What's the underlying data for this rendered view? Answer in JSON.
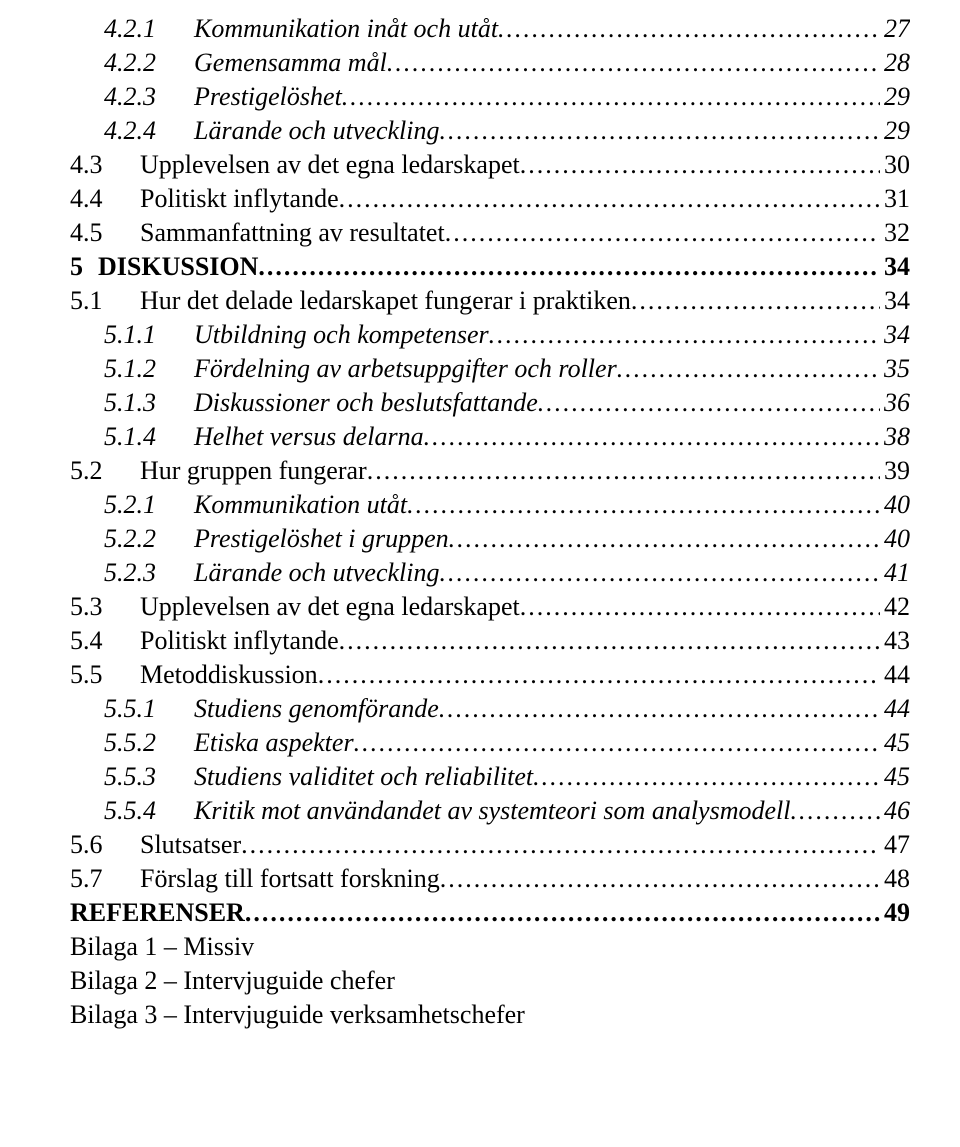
{
  "toc": [
    {
      "level": 3,
      "num": "4.2.1",
      "title": "Kommunikation inåt och utåt",
      "page": "27"
    },
    {
      "level": 3,
      "num": "4.2.2",
      "title": "Gemensamma mål",
      "page": "28"
    },
    {
      "level": 3,
      "num": "4.2.3",
      "title": "Prestigelöshet",
      "page": "29"
    },
    {
      "level": 3,
      "num": "4.2.4",
      "title": "Lärande och utveckling",
      "page": "29"
    },
    {
      "level": 2,
      "num": "4.3",
      "title": "Upplevelsen av det egna ledarskapet",
      "page": "30"
    },
    {
      "level": 2,
      "num": "4.4",
      "title": "Politiskt inflytande",
      "page": "31"
    },
    {
      "level": 2,
      "num": "4.5",
      "title": "Sammanfattning av resultatet",
      "page": "32"
    },
    {
      "level": 1,
      "num": "5",
      "title": "DISKUSSION",
      "page": "34"
    },
    {
      "level": 2,
      "num": "5.1",
      "title": "Hur det delade ledarskapet fungerar i praktiken",
      "page": "34"
    },
    {
      "level": 3,
      "num": "5.1.1",
      "title": "Utbildning och kompetenser",
      "page": "34"
    },
    {
      "level": 3,
      "num": "5.1.2",
      "title": "Fördelning av arbetsuppgifter och roller",
      "page": "35"
    },
    {
      "level": 3,
      "num": "5.1.3",
      "title": "Diskussioner och beslutsfattande",
      "page": "36"
    },
    {
      "level": 3,
      "num": "5.1.4",
      "title": "Helhet versus delarna",
      "page": "38"
    },
    {
      "level": 2,
      "num": "5.2",
      "title": "Hur gruppen fungerar",
      "page": "39"
    },
    {
      "level": 3,
      "num": "5.2.1",
      "title": "Kommunikation utåt",
      "page": "40"
    },
    {
      "level": 3,
      "num": "5.2.2",
      "title": "Prestigelöshet i gruppen",
      "page": "40"
    },
    {
      "level": 3,
      "num": "5.2.3",
      "title": "Lärande och utveckling",
      "page": "41"
    },
    {
      "level": 2,
      "num": "5.3",
      "title": "Upplevelsen av det egna ledarskapet",
      "page": "42"
    },
    {
      "level": 2,
      "num": "5.4",
      "title": "Politiskt inflytande",
      "page": "43"
    },
    {
      "level": 2,
      "num": "5.5",
      "title": "Metoddiskussion",
      "page": "44"
    },
    {
      "level": 3,
      "num": "5.5.1",
      "title": "Studiens genomförande",
      "page": "44"
    },
    {
      "level": 3,
      "num": "5.5.2",
      "title": "Etiska aspekter",
      "page": "45"
    },
    {
      "level": 3,
      "num": "5.5.3",
      "title": "Studiens validitet och reliabilitet",
      "page": "45"
    },
    {
      "level": 3,
      "num": "5.5.4",
      "title": "Kritik mot användandet av systemteori som analysmodell",
      "page": "46"
    },
    {
      "level": 2,
      "num": "5.6",
      "title": "Slutsatser",
      "page": "47"
    },
    {
      "level": 2,
      "num": "5.7",
      "title": "Förslag till fortsatt forskning",
      "page": "48"
    },
    {
      "level": 1,
      "num": "",
      "title": "REFERENSER",
      "page": "49"
    }
  ],
  "appendices": [
    "Bilaga 1 – Missiv",
    "Bilaga 2 – Intervjuguide chefer",
    "Bilaga 3 – Intervjuguide verksamhetschefer"
  ]
}
